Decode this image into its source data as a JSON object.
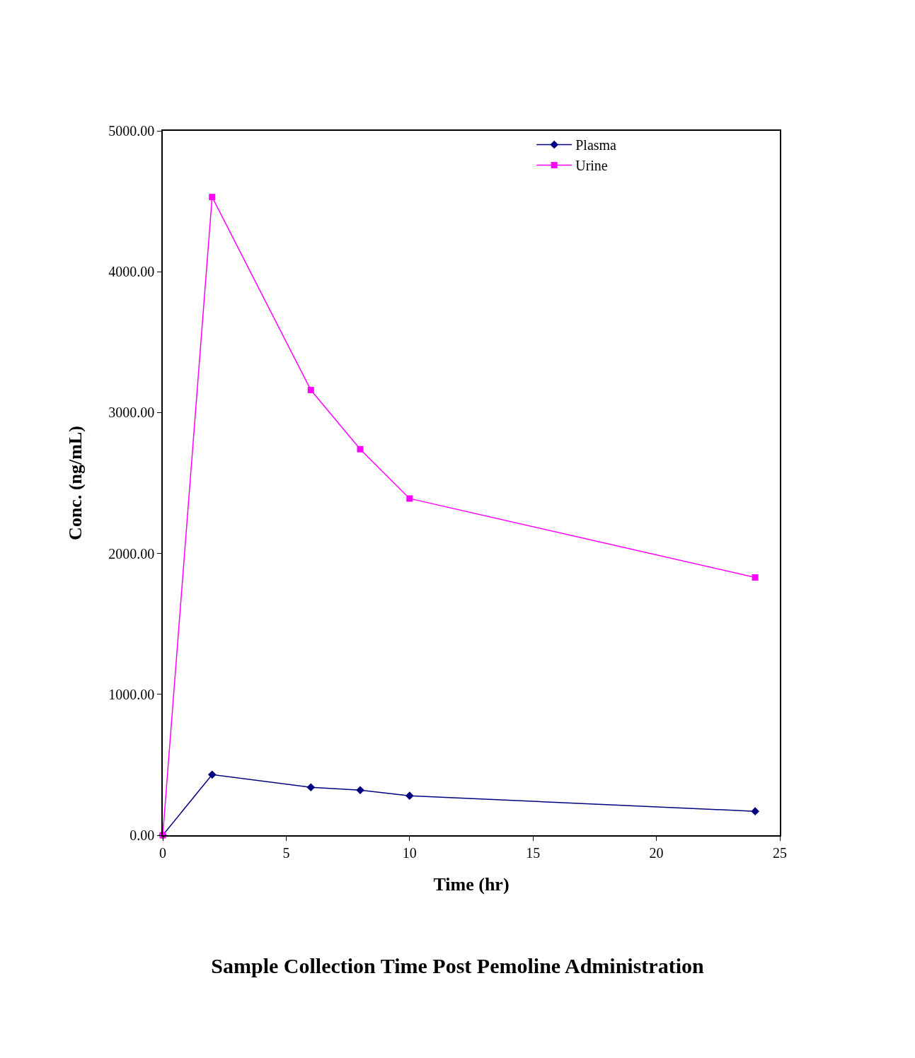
{
  "chart_data": {
    "type": "line",
    "title": "Sample Collection Time Post Pemoline Administration",
    "xlabel": "Time (hr)",
    "ylabel": "Conc. (ng/mL)",
    "x": [
      0,
      2,
      6,
      8,
      10,
      24
    ],
    "series": [
      {
        "name": "Plasma",
        "color": "#000080",
        "marker": "diamond",
        "values": [
          0,
          430,
          340,
          320,
          280,
          170
        ]
      },
      {
        "name": "Urine",
        "color": "#ff00ff",
        "marker": "square",
        "values": [
          0,
          4530,
          3160,
          2740,
          2390,
          1830
        ]
      }
    ],
    "xlim": [
      0,
      25
    ],
    "xticks": [
      0,
      5,
      10,
      15,
      20,
      25
    ],
    "ylim": [
      0,
      5000
    ],
    "yticks": [
      {
        "value": 0,
        "label": "0.00"
      },
      {
        "value": 1000,
        "label": "1000.00"
      },
      {
        "value": 2000,
        "label": "2000.00"
      },
      {
        "value": 3000,
        "label": "3000.00"
      },
      {
        "value": 4000,
        "label": "4000.00"
      },
      {
        "value": 5000,
        "label": "5000.00"
      }
    ],
    "grid": false,
    "legend": "top right",
    "line_style": "solid"
  }
}
